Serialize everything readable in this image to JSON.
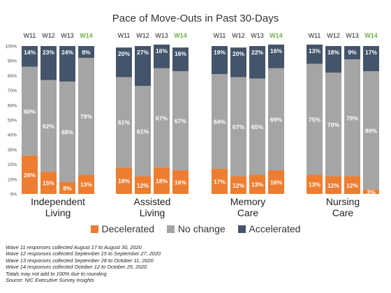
{
  "chart_data": {
    "type": "bar",
    "stacked": true,
    "normalized": true,
    "title": "Pace of Move-Outs in Past 30-Days",
    "ylim": [
      0,
      100
    ],
    "yticks": [
      "0%",
      "10%",
      "20%",
      "30%",
      "40%",
      "50%",
      "60%",
      "70%",
      "80%",
      "90%",
      "100%"
    ],
    "groups": [
      {
        "label_lines": [
          "Independent",
          "Living"
        ],
        "waves": [
          "W11",
          "W12",
          "W13",
          "W14"
        ],
        "decelerated": [
          26,
          15,
          8,
          13
        ],
        "no_change": [
          60,
          62,
          68,
          79
        ],
        "accelerated": [
          14,
          23,
          24,
          8
        ]
      },
      {
        "label_lines": [
          "Assisted",
          "Living"
        ],
        "waves": [
          "W11",
          "W12",
          "W13",
          "W14"
        ],
        "decelerated": [
          18,
          12,
          18,
          16
        ],
        "no_change": [
          61,
          61,
          67,
          67
        ],
        "accelerated": [
          20,
          27,
          16,
          16
        ]
      },
      {
        "label_lines": [
          "Memory",
          "Care"
        ],
        "waves": [
          "W11",
          "W12",
          "W13",
          "W14"
        ],
        "decelerated": [
          17,
          12,
          13,
          16
        ],
        "no_change": [
          64,
          67,
          65,
          69
        ],
        "accelerated": [
          19,
          20,
          22,
          16
        ]
      },
      {
        "label_lines": [
          "Nursing",
          "Care"
        ],
        "waves": [
          "W11",
          "W12",
          "W13",
          "W14"
        ],
        "decelerated": [
          13,
          12,
          12,
          3
        ],
        "no_change": [
          75,
          70,
          79,
          80
        ],
        "accelerated": [
          13,
          18,
          9,
          17
        ]
      }
    ],
    "series": [
      {
        "key": "decelerated",
        "name": "Decelerated",
        "color": "#ED7D31"
      },
      {
        "key": "no_change",
        "name": "No change",
        "color": "#A5A5A5"
      },
      {
        "key": "accelerated",
        "name": "Accelerated",
        "color": "#44546A"
      }
    ],
    "highlight_wave": "W14",
    "highlight_color": "#70AD47",
    "legend_position": "bottom"
  },
  "notes": [
    "Wave 11 responses collected August 17 to August 30, 2020",
    "Wave 12 responses collected September 15 to September 27, 2020",
    "Wave 13 responses collected September 28 to October 11, 2020",
    "Wave 14 responses collected October 12 to October 25, 2020",
    "Totals may not add to 100% due to rounding",
    "Source: NIC Executive Survey Insights"
  ]
}
